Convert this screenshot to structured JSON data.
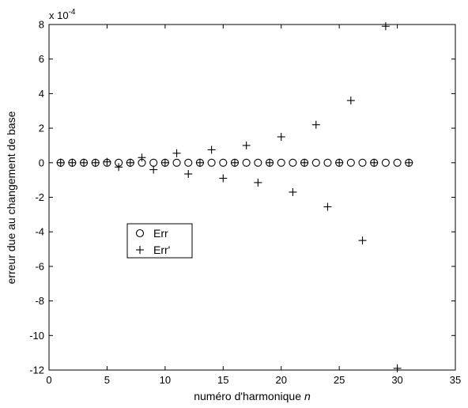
{
  "chart_data": {
    "type": "scatter",
    "title": "",
    "xlabel": "numéro d'harmonique",
    "xlabel_var": "n",
    "ylabel": "erreur due au changement de base",
    "y_exponent_label": "x 10",
    "y_exponent_power": "-4",
    "xlim": [
      0,
      35
    ],
    "ylim": [
      -12,
      8
    ],
    "xticks": [
      0,
      5,
      10,
      15,
      20,
      25,
      30,
      35
    ],
    "yticks": [
      -12,
      -10,
      -8,
      -6,
      -4,
      -2,
      0,
      2,
      4,
      6,
      8
    ],
    "grid": false,
    "legend_position": "center-left",
    "series": [
      {
        "name": "Err",
        "marker": "circle",
        "points": [
          [
            1,
            0
          ],
          [
            2,
            0
          ],
          [
            3,
            0
          ],
          [
            4,
            0
          ],
          [
            5,
            0
          ],
          [
            6,
            0
          ],
          [
            7,
            0
          ],
          [
            8,
            0
          ],
          [
            9,
            0
          ],
          [
            10,
            0
          ],
          [
            11,
            0
          ],
          [
            12,
            0
          ],
          [
            13,
            0
          ],
          [
            14,
            0
          ],
          [
            15,
            0
          ],
          [
            16,
            0
          ],
          [
            17,
            0
          ],
          [
            18,
            0
          ],
          [
            19,
            0
          ],
          [
            20,
            0
          ],
          [
            21,
            0
          ],
          [
            22,
            0
          ],
          [
            23,
            0
          ],
          [
            24,
            0
          ],
          [
            25,
            0
          ],
          [
            26,
            0
          ],
          [
            27,
            0
          ],
          [
            28,
            0
          ],
          [
            29,
            0
          ],
          [
            30,
            0
          ],
          [
            31,
            0
          ]
        ]
      },
      {
        "name": "Err'",
        "marker": "plus",
        "points": [
          [
            1,
            0
          ],
          [
            2,
            0
          ],
          [
            3,
            0
          ],
          [
            4,
            0
          ],
          [
            5,
            0.05
          ],
          [
            6,
            -0.25
          ],
          [
            7,
            0
          ],
          [
            8,
            0.3
          ],
          [
            9,
            -0.4
          ],
          [
            10,
            0
          ],
          [
            11,
            0.55
          ],
          [
            12,
            -0.65
          ],
          [
            13,
            0
          ],
          [
            14,
            0.75
          ],
          [
            15,
            -0.9
          ],
          [
            16,
            0
          ],
          [
            17,
            1.0
          ],
          [
            18,
            -1.15
          ],
          [
            19,
            0
          ],
          [
            20,
            1.5
          ],
          [
            21,
            -1.7
          ],
          [
            22,
            0
          ],
          [
            23,
            2.2
          ],
          [
            24,
            -2.55
          ],
          [
            25,
            0
          ],
          [
            26,
            3.6
          ],
          [
            27,
            -4.5
          ],
          [
            28,
            0
          ],
          [
            29,
            7.9
          ],
          [
            30,
            -11.9
          ],
          [
            31,
            0
          ]
        ]
      }
    ]
  }
}
